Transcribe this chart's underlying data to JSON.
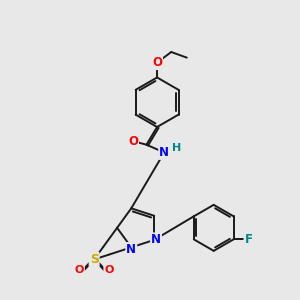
{
  "background_color": "#e8e8e8",
  "bond_color": "#1a1a1a",
  "atom_colors": {
    "O": "#ff0000",
    "N": "#0000ff",
    "S": "#ccaa00",
    "F": "#008888",
    "H": "#008888",
    "C": "#1a1a1a"
  },
  "figsize": [
    3.0,
    3.0
  ],
  "dpi": 100
}
